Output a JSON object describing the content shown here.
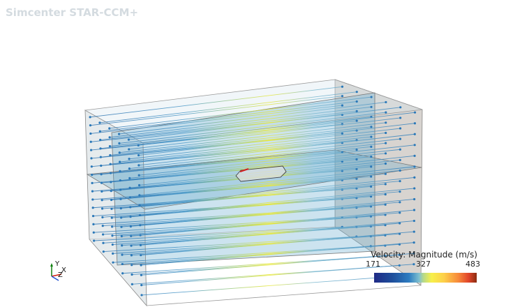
{
  "app": {
    "title": "Simcenter STAR-CCM+"
  },
  "legend": {
    "title": "Velocity: Magnitude (m/s)",
    "min": "171",
    "mid": "327",
    "max": "483",
    "colormap": [
      "#1f2a86",
      "#2d7cc0",
      "#7fc0d0",
      "#f7f04a",
      "#f78a3a",
      "#8a2c10"
    ]
  },
  "triad": {
    "x": "X",
    "y": "Y",
    "z": "Z",
    "x_color": "#d02010",
    "y_color": "#108010",
    "z_color": "#2050d0"
  },
  "scene": {
    "streamline_color": "#2a78b8",
    "highlight_color": "#e8e83a"
  }
}
